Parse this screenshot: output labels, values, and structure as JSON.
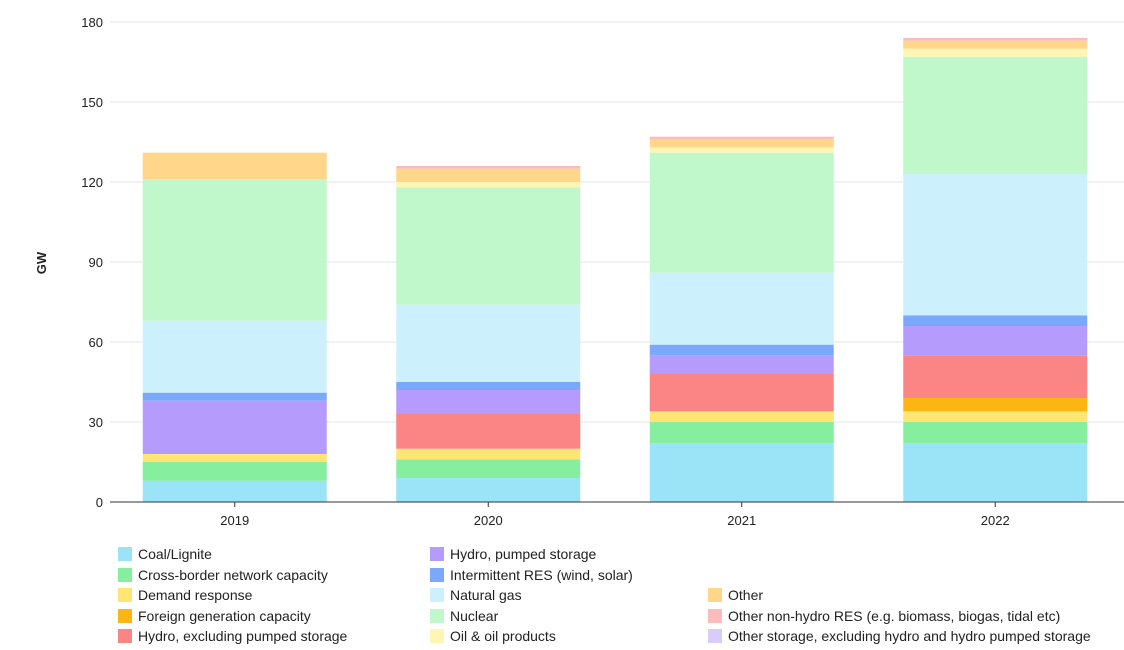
{
  "chart_data": {
    "type": "bar",
    "stacked": true,
    "ylabel": "GW",
    "ylim": [
      0,
      180
    ],
    "yticks": [
      0,
      30,
      60,
      90,
      120,
      150,
      180
    ],
    "grid": true,
    "legend_position": "bottom",
    "categories": [
      "2019",
      "2020",
      "2021",
      "2022"
    ],
    "series": [
      {
        "name": "Coal/Lignite",
        "color": "#9be4f8",
        "values": [
          8,
          9,
          22,
          22
        ]
      },
      {
        "name": "Cross-border network capacity",
        "color": "#85ee9f",
        "values": [
          7,
          7,
          8,
          8
        ]
      },
      {
        "name": "Demand response",
        "color": "#ffe574",
        "values": [
          3,
          4,
          4,
          4
        ]
      },
      {
        "name": "Foreign generation capacity",
        "color": "#fbb614",
        "values": [
          0,
          0,
          0,
          5
        ]
      },
      {
        "name": "Hydro, excluding pumped storage",
        "color": "#fb8484",
        "values": [
          0,
          13,
          14,
          16
        ]
      },
      {
        "name": "Hydro, pumped storage",
        "color": "#b59bfb",
        "values": [
          20,
          9,
          7,
          11
        ]
      },
      {
        "name": "Intermittent RES (wind, solar)",
        "color": "#7aa9fb",
        "values": [
          3,
          3,
          4,
          4
        ]
      },
      {
        "name": "Natural gas",
        "color": "#cdf1fc",
        "values": [
          27,
          29,
          27,
          53
        ]
      },
      {
        "name": "Nuclear",
        "color": "#c0f8cc",
        "values": [
          53,
          44,
          45,
          44
        ]
      },
      {
        "name": "Oil & oil products",
        "color": "#fff6b4",
        "values": [
          0,
          2,
          2,
          3
        ]
      },
      {
        "name": "Other",
        "color": "#ffd68a",
        "values": [
          10,
          5,
          3,
          3
        ]
      },
      {
        "name": "Other non-hydro RES (e.g. biomass, biogas, tidal etc)",
        "color": "#fdbcbc",
        "values": [
          0,
          1,
          1,
          1
        ]
      },
      {
        "name": "Other storage, excluding hydro and hydro pumped storage",
        "color": "#d9ccfb",
        "values": [
          0,
          0,
          0,
          0
        ]
      }
    ]
  }
}
